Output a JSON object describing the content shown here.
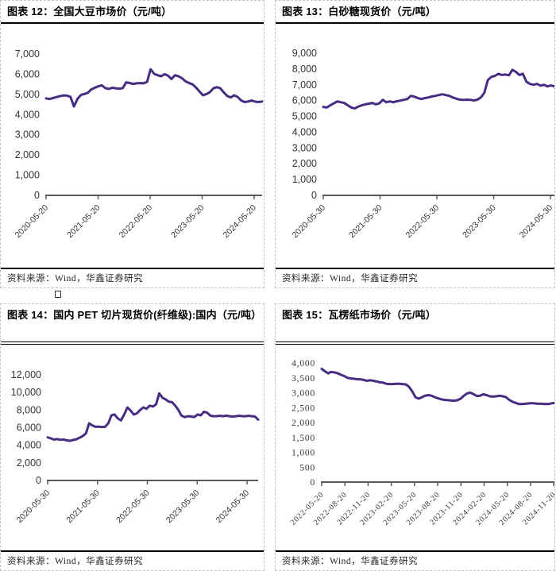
{
  "page": {
    "source_label": "资料来源：Wind，华鑫证券研究"
  },
  "chart_data": [
    {
      "type": "line",
      "title": "图表 12：全国大豆市场价（元/吨）",
      "source": "资料来源：Wind，华鑫证券研究",
      "ylabel": "",
      "xlabel": "",
      "ylim": [
        0,
        7000
      ],
      "ytick_step": 1000,
      "grid": false,
      "legend": "none",
      "line_color": "#472d82",
      "axis_color": "#595959",
      "x_tick_labels": [
        "2020-05-20",
        "2021-05-20",
        "2022-05-20",
        "2023-05-20",
        "2024-05-20"
      ],
      "values": [
        4800,
        4770,
        4820,
        4870,
        4910,
        4950,
        4940,
        4880,
        4400,
        4780,
        4970,
        5020,
        5080,
        5250,
        5330,
        5400,
        5450,
        5310,
        5270,
        5330,
        5300,
        5280,
        5310,
        5600,
        5560,
        5520,
        5550,
        5560,
        5550,
        5620,
        6250,
        6020,
        5950,
        5900,
        6000,
        5930,
        5760,
        5950,
        5900,
        5800,
        5650,
        5560,
        5500,
        5350,
        5150,
        4960,
        5010,
        5110,
        5300,
        5360,
        5300,
        5100,
        4920,
        4850,
        4960,
        4870,
        4700,
        4620,
        4650,
        4700,
        4640,
        4620,
        4650
      ]
    },
    {
      "type": "line",
      "title": "图表 13：白砂糖现货价（元/吨）",
      "source": "资料来源：Wind，华鑫证券研究",
      "ylabel": "",
      "xlabel": "",
      "ylim": [
        0,
        9000
      ],
      "ytick_step": 1000,
      "grid": false,
      "legend": "none",
      "line_color": "#472d82",
      "axis_color": "#595959",
      "x_tick_labels": [
        "2020-05-30",
        "2021-05-30",
        "2022-05-30",
        "2023-05-30",
        "2024-05-30"
      ],
      "values": [
        5600,
        5560,
        5700,
        5820,
        5950,
        5900,
        5850,
        5700,
        5560,
        5500,
        5620,
        5700,
        5760,
        5800,
        5850,
        5760,
        5820,
        6050,
        5900,
        5950,
        5900,
        5960,
        6000,
        6050,
        6100,
        6300,
        6250,
        6160,
        6100,
        6160,
        6200,
        6260,
        6300,
        6350,
        6400,
        6350,
        6300,
        6200,
        6120,
        6060,
        6050,
        6060,
        6050,
        6010,
        6060,
        6200,
        6500,
        7300,
        7500,
        7560,
        7700,
        7620,
        7650,
        7600,
        7950,
        7820,
        7620,
        7700,
        7200,
        7060,
        7000,
        7060,
        6950,
        7000,
        6900,
        6960,
        6900
      ]
    },
    {
      "type": "line",
      "title": "图表 14：国内 PET 切片现货价(纤维级):国内（元/吨）",
      "source": "资料来源：Wind，华鑫证券研究",
      "ylabel": "",
      "xlabel": "",
      "ylim": [
        0,
        12000
      ],
      "ytick_step": 2000,
      "grid": false,
      "legend": "none",
      "line_color": "#472d82",
      "axis_color": "#595959",
      "x_tick_labels": [
        "2020-05-30",
        "2021-05-30",
        "2022-05-30",
        "2023-05-30",
        "2024-05-30"
      ],
      "values": [
        4900,
        4780,
        4650,
        4700,
        4620,
        4650,
        4560,
        4500,
        4600,
        4680,
        4850,
        5050,
        5350,
        6500,
        6250,
        6100,
        6120,
        6060,
        6100,
        6500,
        7400,
        7500,
        7050,
        6820,
        7500,
        8300,
        7950,
        7500,
        7620,
        8000,
        8300,
        8150,
        8500,
        8400,
        8650,
        9900,
        9400,
        9200,
        8950,
        8900,
        8500,
        8000,
        7350,
        7200,
        7300,
        7260,
        7210,
        7500,
        7400,
        7800,
        7700,
        7360,
        7300,
        7310,
        7350,
        7300,
        7360,
        7300,
        7260,
        7300,
        7350,
        7310,
        7300,
        7350,
        7300,
        7260,
        6900
      ]
    },
    {
      "type": "line",
      "title": "图表 15：瓦楞纸市场价（元/吨）",
      "source": "资料来源：Wind，华鑫证券研究",
      "ylabel": "",
      "xlabel": "",
      "ylim": [
        0,
        4000
      ],
      "ytick_step": 500,
      "grid": false,
      "legend": "none",
      "line_color": "#472d82",
      "axis_color": "#595959",
      "x_tick_labels": [
        "2022-05-20",
        "2022-08-20",
        "2022-11-20",
        "2023-02-20",
        "2023-05-20",
        "2023-08-20",
        "2023-11-20",
        "2024-02-20",
        "2024-05-20",
        "2024-08-20",
        "2024-11-20"
      ],
      "values": [
        3800,
        3720,
        3650,
        3700,
        3680,
        3650,
        3600,
        3560,
        3500,
        3480,
        3470,
        3450,
        3450,
        3430,
        3400,
        3420,
        3400,
        3380,
        3350,
        3340,
        3300,
        3290,
        3290,
        3300,
        3300,
        3290,
        3280,
        3200,
        3050,
        2850,
        2800,
        2850,
        2900,
        2920,
        2900,
        2850,
        2810,
        2780,
        2760,
        2750,
        2740,
        2730,
        2750,
        2800,
        2900,
        2980,
        3000,
        2950,
        2890,
        2900,
        2950,
        2920,
        2880,
        2870,
        2880,
        2900,
        2880,
        2850,
        2760,
        2700,
        2660,
        2620,
        2620,
        2630,
        2640,
        2650,
        2640,
        2630,
        2630,
        2620,
        2620,
        2640,
        2660
      ]
    }
  ]
}
